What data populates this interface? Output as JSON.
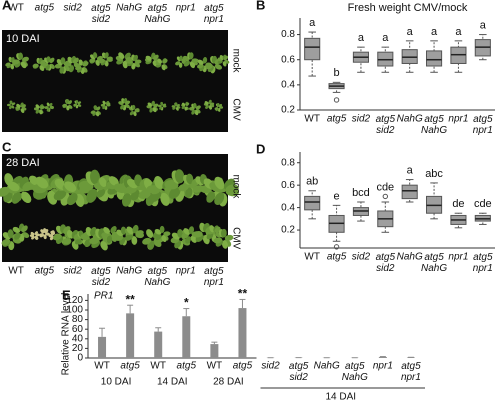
{
  "photos": [
    {
      "panel": "A",
      "stage": "10 DAI",
      "genotypes": [
        "WT",
        "atg5",
        "sid2",
        "atg5 sid2",
        "NahG",
        "atg5 NahG",
        "npr1",
        "atg5 npr1"
      ],
      "rows": [
        "mock",
        "CMV"
      ]
    },
    {
      "panel": "C",
      "stage": "28 DAI",
      "genotypes": [
        "WT",
        "atg5",
        "sid2",
        "atg5 sid2",
        "NahG",
        "atg5 NahG",
        "npr1",
        "atg5 npr1"
      ],
      "rows": [
        "mock",
        "CMV"
      ]
    }
  ],
  "chart_data": [
    {
      "type": "box",
      "panel": "B",
      "title": "Fresh weight CMV/mock",
      "color": "#9e9e9e",
      "categories": [
        "WT",
        "atg5",
        "sid2",
        "atg5 sid2",
        "NahG",
        "atg5 NahG",
        "npr1",
        "atg5 npr1"
      ],
      "boxes": [
        {
          "min": 0.47,
          "q1": 0.6,
          "median": 0.7,
          "q3": 0.77,
          "max": 0.82,
          "outliers": []
        },
        {
          "min": 0.34,
          "q1": 0.37,
          "median": 0.39,
          "q3": 0.41,
          "max": 0.42,
          "outliers": [
            0.28
          ]
        },
        {
          "min": 0.5,
          "q1": 0.58,
          "median": 0.62,
          "q3": 0.66,
          "max": 0.7,
          "outliers": []
        },
        {
          "min": 0.5,
          "q1": 0.55,
          "median": 0.6,
          "q3": 0.66,
          "max": 0.7,
          "outliers": []
        },
        {
          "min": 0.5,
          "q1": 0.57,
          "median": 0.62,
          "q3": 0.68,
          "max": 0.75,
          "outliers": []
        },
        {
          "min": 0.5,
          "q1": 0.55,
          "median": 0.6,
          "q3": 0.67,
          "max": 0.75,
          "outliers": []
        },
        {
          "min": 0.5,
          "q1": 0.57,
          "median": 0.64,
          "q3": 0.7,
          "max": 0.75,
          "outliers": []
        },
        {
          "min": 0.6,
          "q1": 0.63,
          "median": 0.7,
          "q3": 0.76,
          "max": 0.8,
          "outliers": []
        }
      ],
      "letters": [
        "a",
        "b",
        "a",
        "a",
        "a",
        "a",
        "a",
        "a"
      ],
      "ylim": [
        0.2,
        0.9
      ],
      "yticks": [
        0.2,
        0.4,
        0.6,
        0.8
      ]
    },
    {
      "type": "box",
      "panel": "D",
      "color": "#9e9e9e",
      "categories": [
        "WT",
        "atg5",
        "sid2",
        "atg5 sid2",
        "NahG",
        "atg5 NahG",
        "npr1",
        "atg5 npr1"
      ],
      "boxes": [
        {
          "min": 0.3,
          "q1": 0.38,
          "median": 0.45,
          "q3": 0.5,
          "max": 0.55,
          "outliers": []
        },
        {
          "min": 0.1,
          "q1": 0.18,
          "median": 0.26,
          "q3": 0.33,
          "max": 0.42,
          "outliers": [
            0.05
          ]
        },
        {
          "min": 0.28,
          "q1": 0.33,
          "median": 0.37,
          "q3": 0.4,
          "max": 0.45,
          "outliers": []
        },
        {
          "min": 0.18,
          "q1": 0.23,
          "median": 0.3,
          "q3": 0.37,
          "max": 0.45,
          "outliers": [
            0.5
          ]
        },
        {
          "min": 0.45,
          "q1": 0.48,
          "median": 0.55,
          "q3": 0.6,
          "max": 0.65,
          "outliers": []
        },
        {
          "min": 0.3,
          "q1": 0.35,
          "median": 0.42,
          "q3": 0.5,
          "max": 0.62,
          "outliers": []
        },
        {
          "min": 0.22,
          "q1": 0.25,
          "median": 0.29,
          "q3": 0.33,
          "max": 0.35,
          "outliers": []
        },
        {
          "min": 0.25,
          "q1": 0.28,
          "median": 0.3,
          "q3": 0.33,
          "max": 0.35,
          "outliers": []
        }
      ],
      "letters": [
        "ab",
        "e",
        "bcd",
        "cde",
        "a",
        "abc",
        "de",
        "cde"
      ],
      "ylim": [
        0.04,
        0.86
      ],
      "yticks": [
        0.2,
        0.4,
        0.6,
        0.8
      ]
    },
    {
      "type": "bar",
      "panel": "E",
      "annotation": "PR1",
      "y_label": "Relative RNA level",
      "color": "#8c8c8c",
      "categories": [
        "WT",
        "atg5",
        "WT",
        "atg5",
        "WT",
        "atg5",
        "sid2",
        "atg5 sid2",
        "NahG",
        "atg5 NahG",
        "npr1",
        "atg5 npr1"
      ],
      "values": [
        44,
        93,
        55,
        87,
        29,
        104,
        0.3,
        0.5,
        0.3,
        0.3,
        2,
        1
      ],
      "errors": [
        18,
        17,
        8,
        16,
        4,
        18,
        0.3,
        0.3,
        0.3,
        0.3,
        1,
        0.5
      ],
      "significance": [
        null,
        "**",
        null,
        "*",
        null,
        "**",
        null,
        null,
        null,
        null,
        null,
        null
      ],
      "group_labels": [
        "10 DAI",
        "14 DAI",
        "28 DAI",
        "14 DAI"
      ],
      "ylim": [
        0,
        125
      ],
      "yticks": [
        0,
        20,
        40,
        60,
        80,
        100,
        120
      ]
    }
  ]
}
